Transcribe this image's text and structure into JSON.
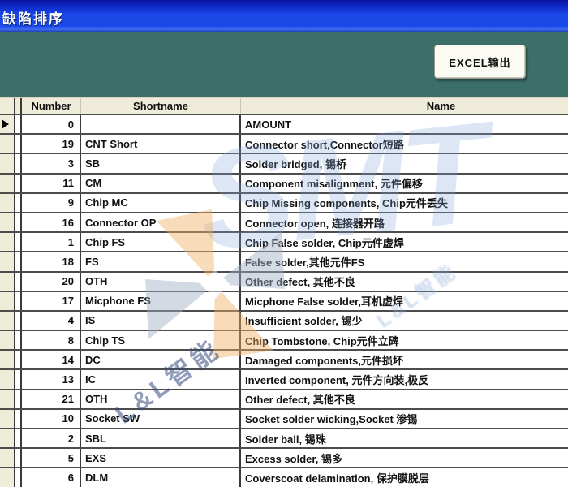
{
  "window": {
    "title": "缺陷排序"
  },
  "toolbar": {
    "excel_button_label": "EXCEL输出"
  },
  "table": {
    "columns": [
      "Number",
      "Shortname",
      "Name"
    ],
    "selected_row_index": 0,
    "rows": [
      {
        "number": "0",
        "shortname": "",
        "name": "AMOUNT"
      },
      {
        "number": "19",
        "shortname": "CNT Short",
        "name": "Connector short,Connector短路"
      },
      {
        "number": "3",
        "shortname": "SB",
        "name": "Solder bridged, 锡桥"
      },
      {
        "number": "11",
        "shortname": "CM",
        "name": "Component misalignment, 元件偏移"
      },
      {
        "number": "9",
        "shortname": "Chip MC",
        "name": "Chip Missing components, Chip元件丢失"
      },
      {
        "number": "16",
        "shortname": "Connector OP",
        "name": "Connector open, 连接器开路"
      },
      {
        "number": "1",
        "shortname": "Chip FS",
        "name": "Chip False solder, Chip元件虚焊"
      },
      {
        "number": "18",
        "shortname": "FS",
        "name": "False solder,其他元件FS"
      },
      {
        "number": "20",
        "shortname": "OTH",
        "name": "Other defect, 其他不良"
      },
      {
        "number": "17",
        "shortname": "Micphone FS",
        "name": "Micphone False solder,耳机虚焊"
      },
      {
        "number": "4",
        "shortname": "IS",
        "name": "Insufficient solder, 锡少"
      },
      {
        "number": "8",
        "shortname": "Chip TS",
        "name": "Chip Tombstone, Chip元件立碑"
      },
      {
        "number": "14",
        "shortname": "DC",
        "name": "Damaged components,元件损坏"
      },
      {
        "number": "13",
        "shortname": "IC",
        "name": "Inverted component, 元件方向装,极反"
      },
      {
        "number": "21",
        "shortname": "OTH",
        "name": "Other defect, 其他不良"
      },
      {
        "number": "10",
        "shortname": "Socket SW",
        "name": "Socket solder wicking,Socket 渗锡"
      },
      {
        "number": "2",
        "shortname": "SBL",
        "name": "Solder ball, 锡珠"
      },
      {
        "number": "5",
        "shortname": "EXS",
        "name": "Excess solder, 锡多"
      },
      {
        "number": "6",
        "shortname": "DLM",
        "name": "Coverscoat delamination, 保护膜脱层"
      }
    ]
  },
  "watermark": {
    "logo_text": "SMT",
    "brand_text": "L&L智能"
  },
  "colors": {
    "titlebar_blue": "#1a49e8",
    "toolbar_teal": "#3c6f68",
    "header_beige": "#efecda",
    "gridline": "#4c4c4c",
    "watermark_orange": "#f0a860",
    "watermark_blue": "#8aa8d8"
  }
}
